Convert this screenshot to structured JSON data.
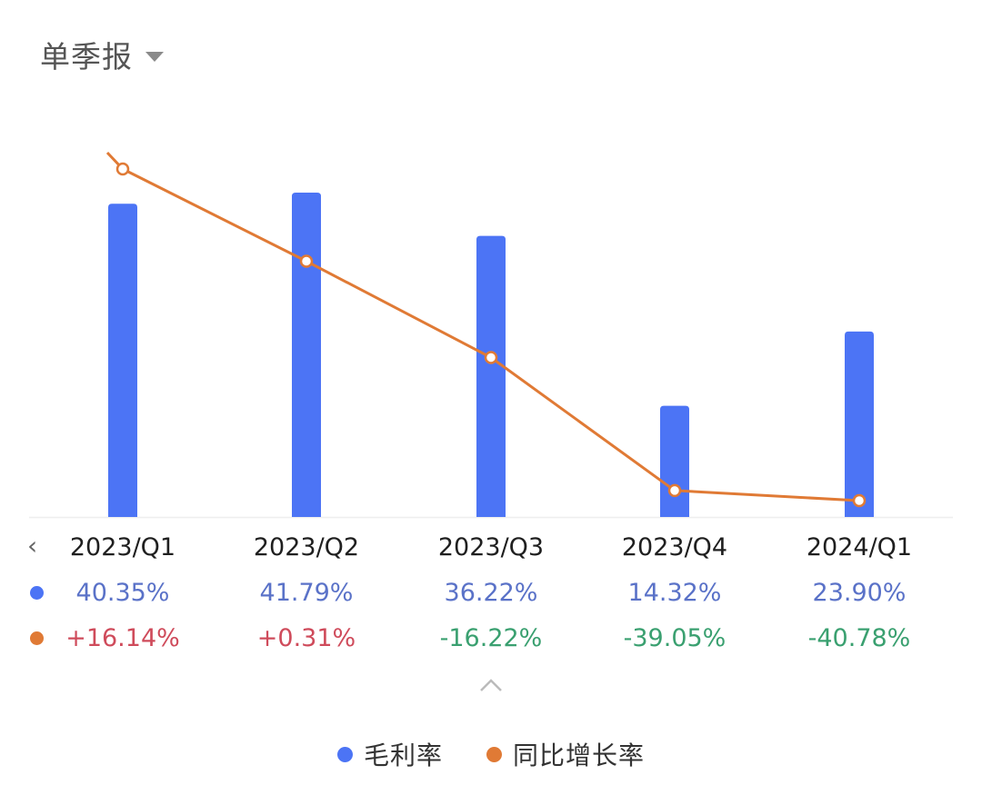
{
  "header": {
    "period_label": "单季报",
    "period_menu_icon": "caret-down-icon"
  },
  "chart_data": {
    "type": "bar",
    "categories": [
      "2023/Q1",
      "2023/Q2",
      "2023/Q3",
      "2023/Q4",
      "2024/Q1"
    ],
    "series": [
      {
        "name": "毛利率",
        "type": "bar",
        "color": "#4c74f5",
        "values": [
          40.35,
          41.79,
          36.22,
          14.32,
          23.9
        ],
        "labels": [
          "40.35%",
          "41.79%",
          "36.22%",
          "14.32%",
          "23.90%"
        ]
      },
      {
        "name": "同比增长率",
        "type": "line",
        "color": "#e07a35",
        "values": [
          16.14,
          0.31,
          -16.22,
          -39.05,
          -40.78
        ],
        "labels": [
          "+16.14%",
          "+0.31%",
          "-16.22%",
          "-39.05%",
          "-40.78%"
        ]
      }
    ],
    "grid": false,
    "legend": "bottom"
  },
  "nav": {
    "prev_icon": "chevron-left-icon",
    "expand_icon": "chevron-up-icon"
  },
  "colors": {
    "positive": "#cf4b5b",
    "negative": "#3aa070",
    "axis": "#eeeeee"
  }
}
